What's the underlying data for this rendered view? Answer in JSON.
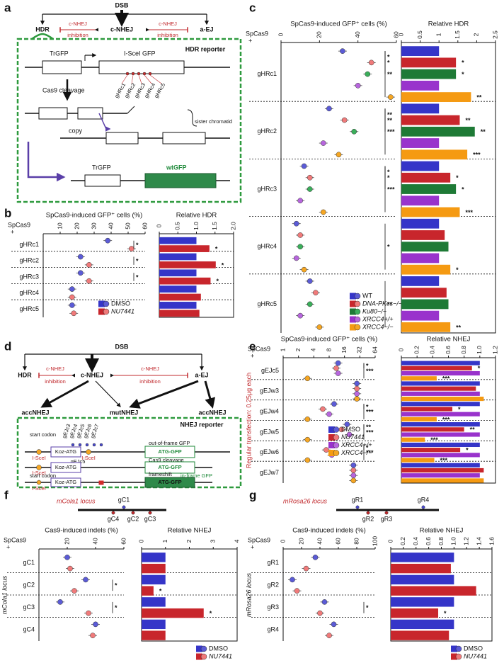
{
  "panel_labels": [
    "a",
    "b",
    "c",
    "d",
    "e",
    "f",
    "g"
  ],
  "diagram_a": {
    "dsb": "DSB",
    "hdr": "HDR",
    "cnhej": "c-NHEJ",
    "aej": "a-EJ",
    "inhibition_left": [
      "c-NHEJ",
      "inhibition"
    ],
    "inhibition_right": [
      "c-NHEJ",
      "inhibition"
    ],
    "reporter": "HDR reporter",
    "trgfp": "TrGFP",
    "isce_gfp": "I-SceI GFP",
    "cleavage": "Cas9 cleavage",
    "guides": [
      "gHRc1",
      "gHRc2",
      "gHRc3",
      "gHRc4",
      "gHRc5"
    ],
    "copy": "copy",
    "sister": "sister chromatid",
    "trgfp2": "TrGFP",
    "wtgfp": "wtGFP"
  },
  "diagram_d": {
    "dsb": "DSB",
    "hdr": "HDR",
    "cnhej": "c-NHEJ",
    "aej": "a-EJ",
    "inhibition_left": [
      "c-NHEJ",
      "inhibition"
    ],
    "inhibition_right": [
      "c-NHEJ",
      "inhibition"
    ],
    "acc_left": "accNHEJ",
    "mut": "mutNHEJ",
    "acc_right": "accNHEJ",
    "reporter": "NHEJ reporter",
    "guides": [
      "gEJc3",
      "gEJc4",
      "gEJc5",
      "gEJc6",
      "gEJc7"
    ],
    "start_codon": "start codon",
    "koz": "Koz-ATG",
    "isce": "I-SceI",
    "isce2": "I-SceI",
    "out_of_frame": "out-of-frame GFP",
    "atg_gfp": "ATG-GFP",
    "cut_guide": "gEJc5",
    "cleavage": "Cas9 cleavage",
    "koz2": "Koz-ATG",
    "isce3": "I-SceI",
    "atg_gfp2": "ATG-GFP",
    "frameshift": "frameshift",
    "start_codon2": "start codon",
    "in_frame": "in-frame GFP",
    "koz3": "Koz-ATG",
    "isce4": "I-SceI",
    "atg_gfp3": "ATG-GFP"
  },
  "locus_f": {
    "name": "mCola1 locus",
    "guides": [
      "gC1",
      "gC4",
      "gC2",
      "gC3"
    ]
  },
  "locus_g": {
    "name": "mRosa26 locus",
    "guides": [
      "gR1",
      "gR4",
      "gR2",
      "gR3"
    ]
  },
  "chart_data": [
    {
      "type": "dot",
      "title": "SpCas9-induced GFP⁺ cells (%)",
      "row_header": [
        "SpCas9",
        "+"
      ],
      "categories": [
        "gHRc1",
        "gHRc2",
        "gHRc3",
        "gHRc4",
        "gHRc5"
      ],
      "xlim": [
        0,
        60
      ],
      "xticks": [
        10,
        20,
        30,
        40,
        50,
        60
      ],
      "legend": "lower right",
      "series": [
        {
          "name": "DMSO",
          "color": "#5b5bd6",
          "values": [
            38,
            22,
            22,
            17,
            17
          ],
          "annotations": [
            null,
            null,
            null,
            null,
            null
          ]
        },
        {
          "name": "NU7441",
          "color": "#f07a7a",
          "values": [
            52,
            27,
            27,
            17,
            18
          ],
          "annotations": [
            "*",
            "*",
            "*",
            null,
            null
          ]
        }
      ]
    },
    {
      "type": "bar",
      "title": "Relative HDR",
      "xlim": [
        0,
        2
      ],
      "xticks": [
        0,
        0.5,
        {
          "value": 1,
          "label": "1.0"
        },
        1.5,
        {
          "value": 2,
          "label": "2.0"
        }
      ],
      "series": [
        {
          "color": "#3535c8",
          "values": [
            1,
            1,
            1,
            1,
            1
          ],
          "annotations": [
            null,
            null,
            null,
            null,
            null
          ]
        },
        {
          "color": "#c8262c",
          "values": [
            1.35,
            1.52,
            1.38,
            1.12,
            1.08
          ],
          "annotations": [
            "*",
            "*",
            "*",
            null,
            null
          ]
        }
      ]
    },
    {
      "type": "dot",
      "title": "SpCas9-induced GFP⁺ cells (%)",
      "row_header": [
        "SpCas9",
        "+"
      ],
      "categories": [
        "gHRc1",
        "gHRc2",
        "gHRc3",
        "gHRc4",
        "gHRc5"
      ],
      "xlim": [
        0,
        60
      ],
      "xticks": [
        0,
        20,
        40,
        60
      ],
      "legend": "lower right",
      "series": [
        {
          "name": "WT",
          "color": "#5b5bd6",
          "values": [
            32,
            25,
            12,
            8,
            15
          ],
          "annotations": [
            null,
            null,
            null,
            null,
            null
          ]
        },
        {
          "name": "DNA-PKcs−/−",
          "color": "#f07a7a",
          "values": [
            47,
            33,
            15,
            10,
            18
          ],
          "annotations": [
            "*",
            "**",
            "*",
            null,
            null
          ]
        },
        {
          "name": "Ku80−/−",
          "color": "#3aae5a",
          "values": [
            45,
            38,
            15,
            10,
            15
          ],
          "annotations": [
            "*",
            "**",
            "*",
            null,
            null
          ]
        },
        {
          "name": "XRCC4+/+",
          "color": "#b766dd",
          "values": [
            40,
            22,
            10,
            8,
            10
          ],
          "annotations": [
            null,
            null,
            null,
            null,
            null
          ]
        },
        {
          "name": "XRCC4−/−",
          "color": "#f5a623",
          "values": [
            57,
            30,
            22,
            12,
            20
          ],
          "annotations": [
            "**",
            "***",
            "***",
            "*",
            "**"
          ]
        }
      ]
    },
    {
      "type": "bar",
      "title": "Relative HDR",
      "xlim": [
        0,
        2.5
      ],
      "xticks": [
        0,
        0.5,
        1,
        1.5,
        2,
        2.5
      ],
      "series": [
        {
          "color": "#3535c8",
          "values": [
            1,
            1,
            1,
            1,
            1
          ],
          "annotations": [
            null,
            null,
            null,
            null,
            null
          ]
        },
        {
          "color": "#c8262c",
          "values": [
            1.45,
            1.55,
            1.3,
            1.15,
            1.2
          ],
          "annotations": [
            "*",
            "**",
            "*",
            null,
            null
          ]
        },
        {
          "color": "#1e7a36",
          "values": [
            1.45,
            1.95,
            1.45,
            1.25,
            1.25
          ],
          "annotations": [
            "*",
            "**",
            "*",
            null,
            null
          ]
        },
        {
          "color": "#9933cc",
          "values": [
            1,
            1,
            1,
            1,
            1
          ],
          "annotations": [
            null,
            null,
            null,
            null,
            null
          ]
        },
        {
          "color": "#f59a12",
          "values": [
            1.85,
            1.75,
            1.55,
            1.3,
            1.3
          ],
          "annotations": [
            "**",
            "***",
            "***",
            "*",
            "**"
          ]
        }
      ]
    },
    {
      "type": "dot",
      "title": "SpCas9-induced GFP⁺ cells (%)",
      "row_header": [
        "SpCas9",
        "+"
      ],
      "ylabel": "Regular transfection: 0.25μg each",
      "categories": [
        "gEJc5",
        "gEJw3",
        "gEJw4",
        "gEJw5",
        "gEJw6",
        "gEJw7"
      ],
      "log_base": 2,
      "xlim": [
        1,
        64
      ],
      "xticks": [
        1,
        2,
        4,
        8,
        16,
        32,
        64
      ],
      "legend": "center right",
      "series": [
        {
          "name": "DMSO",
          "color": "#5b5bd6",
          "values": [
            12,
            28,
            10,
            18,
            10,
            24
          ],
          "annotations": [
            null,
            null,
            null,
            null,
            null,
            null
          ]
        },
        {
          "name": "NU7441",
          "color": "#f07a7a",
          "values": [
            11,
            28,
            6,
            14,
            7,
            24
          ],
          "annotations": [
            "*",
            null,
            "*",
            "**",
            "*",
            null
          ]
        },
        {
          "name": "XRCC4+/+",
          "color": "#b766dd",
          "values": [
            12,
            28,
            8,
            20,
            9,
            24
          ],
          "annotations": [
            null,
            null,
            null,
            null,
            null,
            null
          ]
        },
        {
          "name": "XRCC4−/−",
          "color": "#f5a623",
          "values": [
            3,
            28,
            3,
            3,
            3,
            24
          ],
          "annotations": [
            "***",
            null,
            "***",
            "***",
            "***",
            null
          ]
        }
      ]
    },
    {
      "type": "bar",
      "title": "Relative NHEJ",
      "xlim": [
        0,
        1.2
      ],
      "xticks": [
        0,
        0.2,
        0.4,
        0.6,
        0.8,
        {
          "value": 1,
          "label": "1.0"
        },
        1.2
      ],
      "series": [
        {
          "color": "#3535c8",
          "values": [
            1,
            1,
            1,
            1,
            1,
            1
          ],
          "annotations": [
            null,
            null,
            null,
            null,
            null,
            null
          ]
        },
        {
          "color": "#c8262c",
          "values": [
            0.9,
            0.95,
            0.65,
            0.8,
            0.75,
            1.05
          ],
          "annotations": [
            "*",
            null,
            "*",
            "**",
            "*",
            null
          ]
        },
        {
          "color": "#9933cc",
          "values": [
            1,
            1,
            1,
            1,
            1,
            1
          ],
          "annotations": [
            null,
            null,
            null,
            null,
            null,
            null
          ]
        },
        {
          "color": "#f59a12",
          "values": [
            0.45,
            1.05,
            0.45,
            0.3,
            0.42,
            1.05
          ],
          "annotations": [
            "***",
            null,
            "***",
            "***",
            "***",
            null
          ]
        }
      ]
    },
    {
      "type": "dot",
      "title": "Cas9-induced indels (%)",
      "row_header": [
        "SpCas9",
        "+"
      ],
      "ylabel": "mCola1 locus",
      "categories": [
        "gC1",
        "gC2",
        "gC3",
        "gC4"
      ],
      "xlim": [
        0,
        60
      ],
      "xticks": [
        20,
        40,
        60
      ],
      "legend": "below",
      "series": [
        {
          "name": "DMSO",
          "color": "#5b5bd6",
          "values": [
            20,
            33,
            15,
            40
          ],
          "annotations": [
            null,
            null,
            null,
            null
          ]
        },
        {
          "name": "NU7441",
          "color": "#f07a7a",
          "values": [
            22,
            25,
            35,
            38
          ],
          "annotations": [
            null,
            "*",
            "*",
            null
          ]
        }
      ]
    },
    {
      "type": "bar",
      "title": "Relative NHEJ",
      "xlim": [
        0,
        4
      ],
      "xticks": [
        0,
        1,
        2,
        3,
        4
      ],
      "series": [
        {
          "color": "#3535c8",
          "values": [
            1,
            1,
            1,
            1
          ],
          "annotations": [
            null,
            null,
            null,
            null
          ]
        },
        {
          "color": "#c8262c",
          "values": [
            1,
            0.5,
            2.6,
            1
          ],
          "annotations": [
            null,
            "*",
            "*",
            null
          ]
        }
      ]
    },
    {
      "type": "dot",
      "title": "Cas9-induced indels (%)",
      "row_header": [
        "SpCas9",
        "+"
      ],
      "ylabel": "mRosa26 locus",
      "categories": [
        "gR1",
        "gR2",
        "gR3",
        "gR4"
      ],
      "xlim": [
        0,
        100
      ],
      "xticks": [
        0,
        20,
        40,
        60,
        80,
        100
      ],
      "legend": "below",
      "series": [
        {
          "name": "DMSO",
          "color": "#5b5bd6",
          "values": [
            35,
            10,
            45,
            55
          ],
          "annotations": [
            null,
            null,
            null,
            null
          ]
        },
        {
          "name": "NU7441",
          "color": "#f07a7a",
          "values": [
            25,
            15,
            40,
            50
          ],
          "annotations": [
            null,
            null,
            "*",
            null
          ]
        }
      ]
    },
    {
      "type": "bar",
      "title": "Relative NHEJ",
      "xlim": [
        0,
        1.6
      ],
      "xticks": [
        0,
        0.2,
        0.4,
        0.6,
        0.8,
        {
          "value": 1,
          "label": "1.0"
        },
        1.2,
        1.4,
        1.6
      ],
      "series": [
        {
          "color": "#3535c8",
          "values": [
            1,
            1,
            1,
            1
          ],
          "annotations": [
            null,
            null,
            null,
            null
          ]
        },
        {
          "color": "#c8262c",
          "values": [
            0.95,
            1.35,
            0.75,
            0.92
          ],
          "annotations": [
            null,
            null,
            "*",
            null
          ]
        }
      ]
    }
  ]
}
